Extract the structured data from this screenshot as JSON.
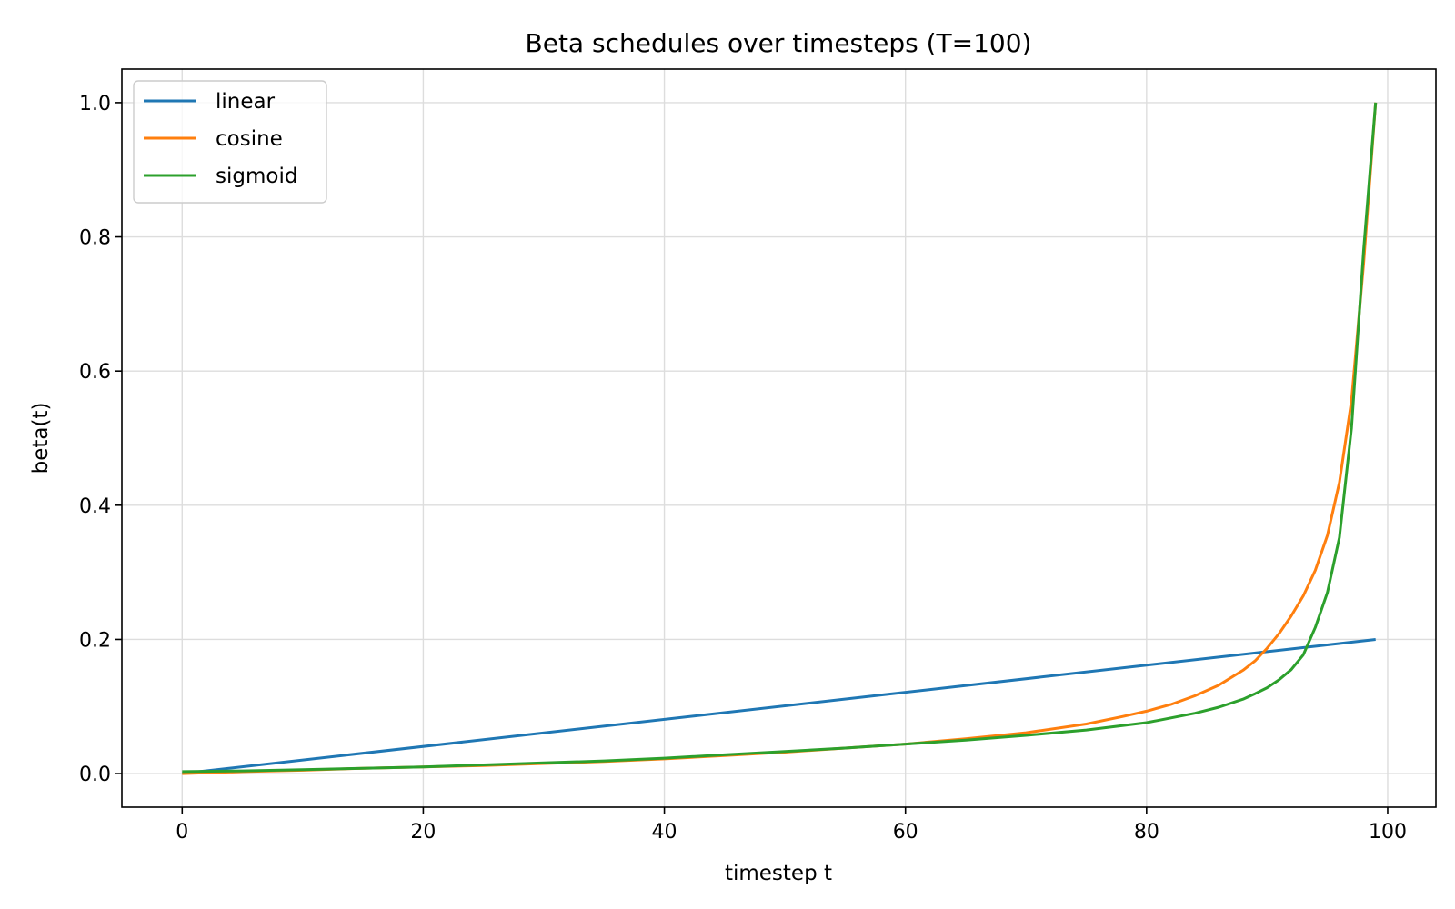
{
  "chart_data": {
    "type": "line",
    "title": "Beta schedules over timesteps (T=100)",
    "xlabel": "timestep t",
    "ylabel": "beta(t)",
    "xlim": [
      -5,
      104
    ],
    "ylim": [
      -0.05,
      1.05
    ],
    "xticks": [
      0,
      20,
      40,
      60,
      80,
      100
    ],
    "xtick_labels": [
      "0",
      "20",
      "40",
      "60",
      "80",
      "100"
    ],
    "yticks": [
      0.0,
      0.2,
      0.4,
      0.6,
      0.8,
      1.0
    ],
    "ytick_labels": [
      "0.0",
      "0.2",
      "0.4",
      "0.6",
      "0.8",
      "1.0"
    ],
    "grid": true,
    "legend_position": "top-left",
    "series": [
      {
        "name": "linear",
        "color": "#1f77b4",
        "x": [
          0,
          99
        ],
        "y": [
          0.0001,
          0.2
        ]
      },
      {
        "name": "cosine",
        "color": "#ff7f0e",
        "x": [
          0,
          5,
          10,
          15,
          20,
          25,
          30,
          35,
          40,
          45,
          50,
          55,
          60,
          65,
          70,
          75,
          78,
          80,
          82,
          84,
          86,
          88,
          89,
          90,
          91,
          92,
          93,
          94,
          95,
          96,
          97,
          98,
          99
        ],
        "y": [
          0.0,
          0.003,
          0.005,
          0.008,
          0.01,
          0.012,
          0.015,
          0.018,
          0.022,
          0.027,
          0.032,
          0.038,
          0.044,
          0.052,
          0.061,
          0.074,
          0.085,
          0.093,
          0.103,
          0.116,
          0.132,
          0.154,
          0.168,
          0.187,
          0.209,
          0.235,
          0.265,
          0.303,
          0.355,
          0.434,
          0.556,
          0.76,
          1.0
        ]
      },
      {
        "name": "sigmoid",
        "color": "#2ca02c",
        "x": [
          0,
          5,
          10,
          15,
          20,
          25,
          30,
          35,
          40,
          45,
          50,
          55,
          60,
          65,
          70,
          75,
          80,
          84,
          86,
          88,
          89,
          90,
          91,
          92,
          93,
          94,
          95,
          96,
          97,
          98,
          99
        ],
        "y": [
          0.003,
          0.004,
          0.006,
          0.008,
          0.01,
          0.013,
          0.016,
          0.019,
          0.023,
          0.028,
          0.033,
          0.038,
          0.044,
          0.05,
          0.057,
          0.065,
          0.076,
          0.09,
          0.099,
          0.111,
          0.119,
          0.128,
          0.14,
          0.155,
          0.177,
          0.218,
          0.27,
          0.352,
          0.515,
          0.78,
          1.0
        ]
      }
    ]
  }
}
